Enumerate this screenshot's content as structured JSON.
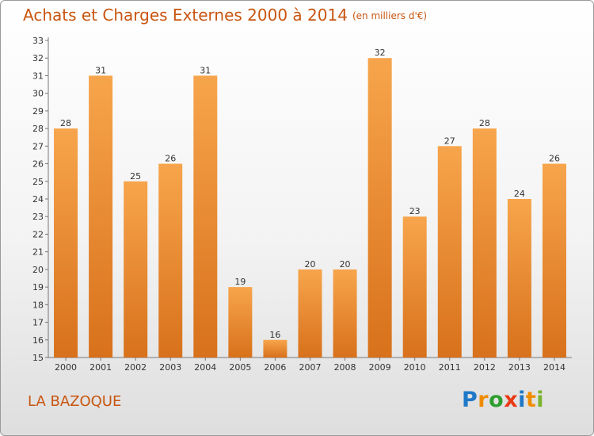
{
  "header": {
    "title": "Achats et Charges Externes 2000 à 2014",
    "subtitle": "(en milliers d'€)"
  },
  "footer": {
    "town": "LA BAZOQUE",
    "logo_text": "Proxiti",
    "logo_letters": [
      "P",
      "r",
      "o",
      "x",
      "i",
      "t",
      "i"
    ]
  },
  "colors": {
    "bar_top": "#f7a54c",
    "bar_bottom": "#d8711b",
    "title": "#c8550f"
  },
  "chart_data": {
    "type": "bar",
    "title": "Achats et Charges Externes 2000 à 2014",
    "subtitle": "(en milliers d'€)",
    "categories": [
      "2000",
      "2001",
      "2002",
      "2003",
      "2004",
      "2005",
      "2006",
      "2007",
      "2008",
      "2009",
      "2010",
      "2011",
      "2012",
      "2013",
      "2014"
    ],
    "values": [
      28,
      31,
      25,
      26,
      31,
      19,
      16,
      20,
      20,
      32,
      23,
      27,
      28,
      24,
      26
    ],
    "ylim": [
      15,
      33
    ],
    "yticks": [
      15,
      16,
      17,
      18,
      19,
      20,
      21,
      22,
      23,
      24,
      25,
      26,
      27,
      28,
      29,
      30,
      31,
      32,
      33
    ],
    "grid": false
  }
}
